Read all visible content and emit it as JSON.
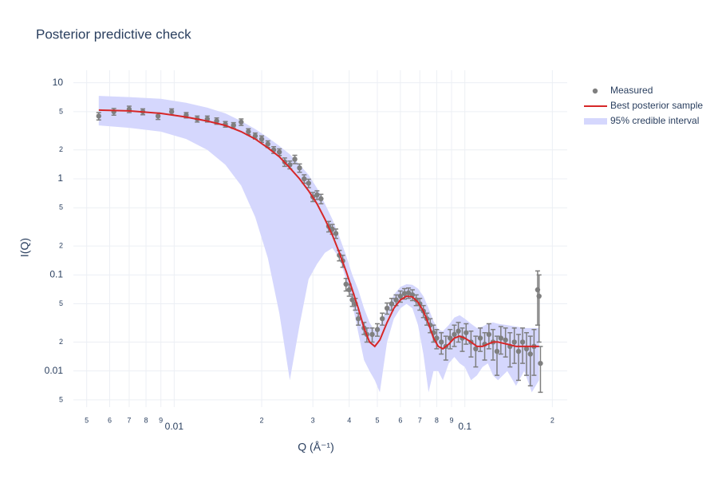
{
  "chart_data": {
    "type": "scatter",
    "title": "Posterior predictive check",
    "xlabel": "Q (Å⁻¹)",
    "ylabel": "I(Q)",
    "xscale": "log",
    "yscale": "log",
    "grid": true,
    "legend": "right",
    "xlim": [
      0.0045,
      0.225
    ],
    "ylim": [
      0.0042,
      13.5
    ],
    "xticks": [
      {
        "value": 0.005,
        "label": "5"
      },
      {
        "value": 0.006,
        "label": "6"
      },
      {
        "value": 0.007,
        "label": "7"
      },
      {
        "value": 0.008,
        "label": "8"
      },
      {
        "value": 0.009,
        "label": "9"
      },
      0.01,
      {
        "value": 0.02,
        "label": "2"
      },
      {
        "value": 0.03,
        "label": "3"
      },
      {
        "value": 0.04,
        "label": "4"
      },
      {
        "value": 0.05,
        "label": "5"
      },
      {
        "value": 0.06,
        "label": "6"
      },
      {
        "value": 0.07,
        "label": "7"
      },
      {
        "value": 0.08,
        "label": "8"
      },
      {
        "value": 0.09,
        "label": "9"
      },
      0.1,
      {
        "value": 0.2,
        "label": "2"
      }
    ],
    "yticks": [
      10,
      5,
      2,
      1,
      {
        "value": 0.5,
        "label": "5"
      },
      {
        "value": 0.2,
        "label": "2"
      },
      0.1,
      {
        "value": 0.05,
        "label": "5"
      },
      {
        "value": 0.02,
        "label": "2"
      },
      0.01,
      {
        "value": 0.005,
        "label": "5"
      }
    ],
    "series": [
      {
        "name": "95% credible interval",
        "type": "band",
        "color": "#d5d7fd",
        "x": [
          0.0055,
          0.007,
          0.009,
          0.011,
          0.013,
          0.015,
          0.017,
          0.019,
          0.021,
          0.023,
          0.025,
          0.027,
          0.029,
          0.031,
          0.033,
          0.035,
          0.037,
          0.039,
          0.041,
          0.043,
          0.045,
          0.047,
          0.049,
          0.051,
          0.054,
          0.057,
          0.06,
          0.063,
          0.066,
          0.069,
          0.072,
          0.075,
          0.078,
          0.081,
          0.084,
          0.088,
          0.092,
          0.096,
          0.1,
          0.105,
          0.11,
          0.115,
          0.12,
          0.125,
          0.13,
          0.14,
          0.15,
          0.16,
          0.17,
          0.18
        ],
        "upper": [
          7.3,
          7.1,
          6.8,
          6.2,
          5.5,
          4.8,
          4.0,
          3.3,
          2.7,
          2.2,
          1.8,
          1.4,
          1.1,
          0.8,
          0.55,
          0.38,
          0.25,
          0.16,
          0.1,
          0.07,
          0.045,
          0.032,
          0.026,
          0.03,
          0.045,
          0.062,
          0.075,
          0.08,
          0.079,
          0.072,
          0.06,
          0.045,
          0.033,
          0.027,
          0.026,
          0.03,
          0.036,
          0.038,
          0.035,
          0.031,
          0.028,
          0.029,
          0.031,
          0.032,
          0.031,
          0.03,
          0.029,
          0.028,
          0.028,
          0.028
        ],
        "lower": [
          3.6,
          3.4,
          3.1,
          2.6,
          2.0,
          1.4,
          0.85,
          0.4,
          0.15,
          0.04,
          0.008,
          0.03,
          0.09,
          0.13,
          0.17,
          0.19,
          0.15,
          0.09,
          0.05,
          0.025,
          0.013,
          0.01,
          0.008,
          0.006,
          0.02,
          0.035,
          0.045,
          0.05,
          0.045,
          0.03,
          0.015,
          0.006,
          0.01,
          0.01,
          0.008,
          0.012,
          0.014,
          0.012,
          0.011,
          0.008,
          0.009,
          0.011,
          0.012,
          0.009,
          0.008,
          0.01,
          0.007,
          0.01,
          0.006,
          0.008
        ]
      },
      {
        "name": "Measured",
        "type": "errorpoints",
        "color": "#7f7f7f",
        "x": [
          0.0055,
          0.0062,
          0.007,
          0.0078,
          0.0088,
          0.0098,
          0.011,
          0.012,
          0.013,
          0.014,
          0.015,
          0.016,
          0.017,
          0.018,
          0.019,
          0.02,
          0.021,
          0.022,
          0.023,
          0.024,
          0.025,
          0.026,
          0.027,
          0.028,
          0.029,
          0.03,
          0.031,
          0.032,
          0.034,
          0.035,
          0.036,
          0.037,
          0.038,
          0.039,
          0.04,
          0.041,
          0.042,
          0.043,
          0.045,
          0.046,
          0.048,
          0.05,
          0.052,
          0.054,
          0.056,
          0.058,
          0.06,
          0.062,
          0.064,
          0.066,
          0.068,
          0.07,
          0.072,
          0.074,
          0.076,
          0.078,
          0.08,
          0.083,
          0.086,
          0.089,
          0.092,
          0.095,
          0.098,
          0.101,
          0.105,
          0.109,
          0.113,
          0.117,
          0.121,
          0.125,
          0.129,
          0.133,
          0.138,
          0.143,
          0.148,
          0.153,
          0.158,
          0.163,
          0.168,
          0.173,
          0.178,
          0.18,
          0.182
        ],
        "values": [
          4.5,
          5.0,
          5.3,
          5.0,
          4.5,
          5.0,
          4.6,
          4.2,
          4.2,
          4.0,
          3.7,
          3.6,
          3.9,
          3.1,
          2.8,
          2.6,
          2.3,
          2.0,
          1.9,
          1.5,
          1.4,
          1.6,
          1.3,
          1.0,
          0.9,
          0.65,
          0.68,
          0.62,
          0.32,
          0.3,
          0.27,
          0.16,
          0.14,
          0.08,
          0.07,
          0.055,
          0.05,
          0.035,
          0.028,
          0.024,
          0.024,
          0.027,
          0.035,
          0.045,
          0.05,
          0.055,
          0.06,
          0.064,
          0.065,
          0.062,
          0.055,
          0.05,
          0.042,
          0.035,
          0.03,
          0.025,
          0.022,
          0.02,
          0.018,
          0.022,
          0.024,
          0.026,
          0.022,
          0.025,
          0.02,
          0.017,
          0.022,
          0.019,
          0.024,
          0.02,
          0.016,
          0.022,
          0.021,
          0.018,
          0.02,
          0.016,
          0.02,
          0.017,
          0.015,
          0.018,
          0.07,
          0.06,
          0.012
        ],
        "errors": [
          0.4,
          0.4,
          0.4,
          0.35,
          0.35,
          0.35,
          0.3,
          0.3,
          0.3,
          0.3,
          0.25,
          0.25,
          0.3,
          0.22,
          0.2,
          0.2,
          0.18,
          0.16,
          0.15,
          0.15,
          0.13,
          0.16,
          0.13,
          0.1,
          0.09,
          0.07,
          0.07,
          0.07,
          0.04,
          0.035,
          0.03,
          0.02,
          0.02,
          0.012,
          0.01,
          0.008,
          0.007,
          0.005,
          0.004,
          0.004,
          0.004,
          0.004,
          0.005,
          0.006,
          0.007,
          0.007,
          0.008,
          0.008,
          0.008,
          0.008,
          0.007,
          0.007,
          0.006,
          0.005,
          0.005,
          0.005,
          0.005,
          0.005,
          0.005,
          0.005,
          0.006,
          0.006,
          0.006,
          0.006,
          0.006,
          0.006,
          0.006,
          0.006,
          0.007,
          0.007,
          0.007,
          0.007,
          0.007,
          0.007,
          0.008,
          0.008,
          0.008,
          0.008,
          0.008,
          0.009,
          0.04,
          0.04,
          0.006
        ]
      },
      {
        "name": "Best posterior sample",
        "type": "line",
        "color": "#d62728",
        "x": [
          0.0055,
          0.007,
          0.009,
          0.011,
          0.013,
          0.015,
          0.017,
          0.019,
          0.021,
          0.023,
          0.025,
          0.027,
          0.029,
          0.031,
          0.033,
          0.035,
          0.037,
          0.039,
          0.041,
          0.043,
          0.045,
          0.047,
          0.049,
          0.051,
          0.054,
          0.057,
          0.06,
          0.063,
          0.066,
          0.069,
          0.072,
          0.075,
          0.078,
          0.081,
          0.084,
          0.088,
          0.092,
          0.096,
          0.1,
          0.105,
          0.11,
          0.115,
          0.12,
          0.125,
          0.13,
          0.14,
          0.15,
          0.16,
          0.17,
          0.18
        ],
        "values": [
          5.2,
          5.1,
          4.8,
          4.4,
          4.0,
          3.6,
          3.1,
          2.6,
          2.1,
          1.7,
          1.3,
          1.0,
          0.75,
          0.55,
          0.38,
          0.26,
          0.17,
          0.11,
          0.07,
          0.045,
          0.028,
          0.02,
          0.018,
          0.021,
          0.032,
          0.045,
          0.055,
          0.06,
          0.059,
          0.052,
          0.042,
          0.031,
          0.022,
          0.018,
          0.017,
          0.019,
          0.022,
          0.023,
          0.022,
          0.02,
          0.018,
          0.018,
          0.019,
          0.02,
          0.02,
          0.019,
          0.018,
          0.018,
          0.018,
          0.018
        ]
      }
    ]
  }
}
